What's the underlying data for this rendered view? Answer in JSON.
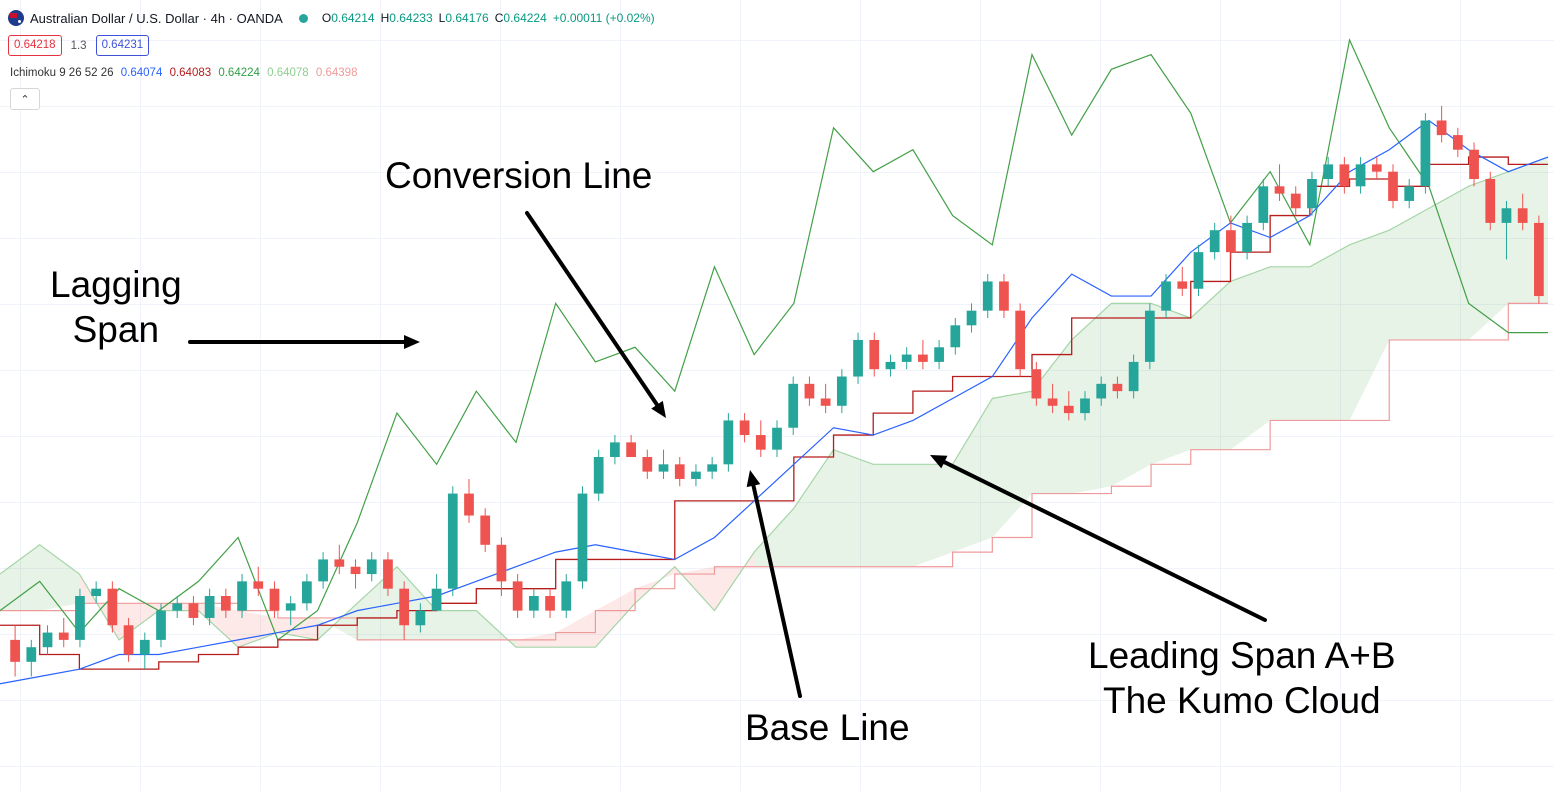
{
  "header": {
    "symbol_title": "Australian Dollar / U.S. Dollar · 4h · OANDA",
    "open_label": "O",
    "open": "0.64214",
    "high_label": "H",
    "high": "0.64233",
    "low_label": "L",
    "low": "0.64176",
    "close_label": "C",
    "close": "0.64224",
    "change": "+0.00011 (+0.02%)"
  },
  "quote": {
    "sell": "0.64218",
    "spread": "1.3",
    "buy": "0.64231"
  },
  "indicator": {
    "name": "Ichimoku 9 26 52 26",
    "values": [
      "0.64074",
      "0.64083",
      "0.64224",
      "0.64078",
      "0.64398"
    ]
  },
  "annotations": {
    "conversion_line": "Conversion Line",
    "lagging_span": "Lagging\nSpan",
    "base_line": "Base Line",
    "leading_span": "Leading Span A+B\nThe Kumo Cloud"
  },
  "colors": {
    "bull": "#26a69a",
    "bear": "#ef5350",
    "conversion": "#2962ff",
    "base": "#b71c1c",
    "lagging": "#43a047",
    "span_a": "#a5d6a7",
    "span_b": "#ef9a9a"
  },
  "chart_data": {
    "type": "candlestick",
    "instrument": "AUD/USD",
    "timeframe": "4h",
    "indicator": "Ichimoku 9 26 52 26",
    "series": [
      {
        "name": "conversion",
        "y": [
          0.641,
          0.6411,
          0.6412,
          0.6414,
          0.6414,
          0.6415,
          0.6416,
          0.6417,
          0.6418,
          0.642,
          0.6421,
          0.6422,
          0.6424,
          0.6426,
          0.6428,
          0.6429,
          0.6428,
          0.6427,
          0.643,
          0.6435,
          0.644,
          0.6445,
          0.6444,
          0.6446,
          0.6449,
          0.6452,
          0.646,
          0.6466,
          0.6463,
          0.6463,
          0.6469,
          0.6473,
          0.6471,
          0.6474,
          0.648,
          0.6483,
          0.6487,
          0.6483,
          0.648,
          0.6482
        ]
      },
      {
        "name": "base",
        "y": [
          0.6418,
          0.6414,
          0.6412,
          0.6412,
          0.6413,
          0.6414,
          0.6415,
          0.6416,
          0.6418,
          0.6419,
          0.642,
          0.6421,
          0.6423,
          0.6423,
          0.6427,
          0.6427,
          0.6427,
          0.6435,
          0.6435,
          0.6435,
          0.6441,
          0.6444,
          0.6447,
          0.645,
          0.6452,
          0.6452,
          0.6455,
          0.646,
          0.646,
          0.646,
          0.6465,
          0.6469,
          0.6474,
          0.6478,
          0.6479,
          0.6478,
          0.6481,
          0.6482,
          0.6481,
          0.6481
        ]
      },
      {
        "name": "lagging",
        "y": [
          0.642,
          0.6424,
          0.6417,
          0.6423,
          0.642,
          0.6424,
          0.643,
          0.6416,
          0.642,
          0.6432,
          0.6447,
          0.644,
          0.645,
          0.6443,
          0.6462,
          0.6454,
          0.6456,
          0.645,
          0.6467,
          0.6455,
          0.6462,
          0.6486,
          0.648,
          0.6483,
          0.6474,
          0.647,
          0.6496,
          0.6485,
          0.6494,
          0.6496,
          0.6488,
          0.6473,
          0.648,
          0.647,
          0.6498,
          0.6486,
          0.6478,
          0.6462,
          0.6458,
          0.6458
        ]
      },
      {
        "name": "span_a",
        "y": [
          0.6425,
          0.6429,
          0.6425,
          0.6416,
          0.642,
          0.642,
          0.6415,
          0.6417,
          0.6416,
          0.6421,
          0.6426,
          0.642,
          0.642,
          0.6415,
          0.6415,
          0.6415,
          0.6421,
          0.6426,
          0.642,
          0.6428,
          0.6434,
          0.6442,
          0.644,
          0.644,
          0.644,
          0.6449,
          0.645,
          0.6457,
          0.6462,
          0.6462,
          0.646,
          0.6465,
          0.6467,
          0.6467,
          0.647,
          0.6472,
          0.6475,
          0.6478,
          0.648,
          0.6482
        ]
      },
      {
        "name": "span_b",
        "y": [
          0.642,
          0.642,
          0.6421,
          0.6421,
          0.6421,
          0.6421,
          0.642,
          0.6419,
          0.6419,
          0.6416,
          0.6416,
          0.6416,
          0.6416,
          0.6416,
          0.6417,
          0.642,
          0.6423,
          0.6425,
          0.6426,
          0.6426,
          0.6426,
          0.6426,
          0.6426,
          0.6426,
          0.6428,
          0.643,
          0.6436,
          0.6436,
          0.6437,
          0.644,
          0.6442,
          0.6442,
          0.6446,
          0.6446,
          0.6446,
          0.6457,
          0.6457,
          0.6457,
          0.6462,
          0.6462
        ]
      }
    ],
    "candles": [
      [
        0.6416,
        0.6418,
        0.6411,
        0.6413
      ],
      [
        0.6413,
        0.6416,
        0.6411,
        0.6415
      ],
      [
        0.6415,
        0.6418,
        0.6414,
        0.6417
      ],
      [
        0.6417,
        0.6419,
        0.6415,
        0.6416
      ],
      [
        0.6416,
        0.6423,
        0.6415,
        0.6422
      ],
      [
        0.6422,
        0.6424,
        0.6421,
        0.6423
      ],
      [
        0.6423,
        0.6424,
        0.6417,
        0.6418
      ],
      [
        0.6418,
        0.6419,
        0.6413,
        0.6414
      ],
      [
        0.6414,
        0.6417,
        0.6412,
        0.6416
      ],
      [
        0.6416,
        0.6421,
        0.6415,
        0.642
      ],
      [
        0.642,
        0.6422,
        0.6419,
        0.6421
      ],
      [
        0.6421,
        0.6422,
        0.6418,
        0.6419
      ],
      [
        0.6419,
        0.6423,
        0.6418,
        0.6422
      ],
      [
        0.6422,
        0.6423,
        0.6419,
        0.642
      ],
      [
        0.642,
        0.6425,
        0.6419,
        0.6424
      ],
      [
        0.6424,
        0.6426,
        0.6422,
        0.6423
      ],
      [
        0.6423,
        0.6424,
        0.6419,
        0.642
      ],
      [
        0.642,
        0.6422,
        0.6418,
        0.6421
      ],
      [
        0.6421,
        0.6425,
        0.642,
        0.6424
      ],
      [
        0.6424,
        0.6428,
        0.6423,
        0.6427
      ],
      [
        0.6427,
        0.6429,
        0.6425,
        0.6426
      ],
      [
        0.6426,
        0.6427,
        0.6423,
        0.6425
      ],
      [
        0.6425,
        0.6428,
        0.6424,
        0.6427
      ],
      [
        0.6427,
        0.6428,
        0.6422,
        0.6423
      ],
      [
        0.6423,
        0.6424,
        0.6416,
        0.6418
      ],
      [
        0.6418,
        0.6421,
        0.6417,
        0.642
      ],
      [
        0.642,
        0.6425,
        0.642,
        0.6423
      ],
      [
        0.6423,
        0.6437,
        0.6422,
        0.6436
      ],
      [
        0.6436,
        0.6438,
        0.6432,
        0.6433
      ],
      [
        0.6433,
        0.6434,
        0.6428,
        0.6429
      ],
      [
        0.6429,
        0.643,
        0.6422,
        0.6424
      ],
      [
        0.6424,
        0.6425,
        0.6419,
        0.642
      ],
      [
        0.642,
        0.6423,
        0.6419,
        0.6422
      ],
      [
        0.6422,
        0.6423,
        0.6419,
        0.642
      ],
      [
        0.642,
        0.6425,
        0.6419,
        0.6424
      ],
      [
        0.6424,
        0.6437,
        0.6423,
        0.6436
      ],
      [
        0.6436,
        0.6442,
        0.6435,
        0.6441
      ],
      [
        0.6441,
        0.6444,
        0.644,
        0.6443
      ],
      [
        0.6443,
        0.6444,
        0.6441,
        0.6441
      ],
      [
        0.6441,
        0.6442,
        0.6438,
        0.6439
      ],
      [
        0.6439,
        0.6442,
        0.6438,
        0.644
      ],
      [
        0.644,
        0.6441,
        0.6437,
        0.6438
      ],
      [
        0.6438,
        0.644,
        0.6437,
        0.6439
      ],
      [
        0.6439,
        0.6441,
        0.6438,
        0.644
      ],
      [
        0.644,
        0.6447,
        0.6439,
        0.6446
      ],
      [
        0.6446,
        0.6447,
        0.6443,
        0.6444
      ],
      [
        0.6444,
        0.6446,
        0.6441,
        0.6442
      ],
      [
        0.6442,
        0.6446,
        0.6441,
        0.6445
      ],
      [
        0.6445,
        0.6452,
        0.6444,
        0.6451
      ],
      [
        0.6451,
        0.6452,
        0.6448,
        0.6449
      ],
      [
        0.6449,
        0.6451,
        0.6447,
        0.6448
      ],
      [
        0.6448,
        0.6453,
        0.6447,
        0.6452
      ],
      [
        0.6452,
        0.6458,
        0.6451,
        0.6457
      ],
      [
        0.6457,
        0.6458,
        0.6452,
        0.6453
      ],
      [
        0.6453,
        0.6455,
        0.6452,
        0.6454
      ],
      [
        0.6454,
        0.6456,
        0.6453,
        0.6455
      ],
      [
        0.6455,
        0.6457,
        0.6453,
        0.6454
      ],
      [
        0.6454,
        0.6457,
        0.6453,
        0.6456
      ],
      [
        0.6456,
        0.646,
        0.6455,
        0.6459
      ],
      [
        0.6459,
        0.6462,
        0.6458,
        0.6461
      ],
      [
        0.6461,
        0.6466,
        0.646,
        0.6465
      ],
      [
        0.6465,
        0.6466,
        0.646,
        0.6461
      ],
      [
        0.6461,
        0.6462,
        0.6452,
        0.6453
      ],
      [
        0.6453,
        0.6454,
        0.6448,
        0.6449
      ],
      [
        0.6449,
        0.6451,
        0.6447,
        0.6448
      ],
      [
        0.6448,
        0.645,
        0.6446,
        0.6447
      ],
      [
        0.6447,
        0.645,
        0.6446,
        0.6449
      ],
      [
        0.6449,
        0.6452,
        0.6448,
        0.6451
      ],
      [
        0.6451,
        0.6452,
        0.6449,
        0.645
      ],
      [
        0.645,
        0.6455,
        0.6449,
        0.6454
      ],
      [
        0.6454,
        0.6462,
        0.6453,
        0.6461
      ],
      [
        0.6461,
        0.6466,
        0.646,
        0.6465
      ],
      [
        0.6465,
        0.6467,
        0.6463,
        0.6464
      ],
      [
        0.6464,
        0.647,
        0.6463,
        0.6469
      ],
      [
        0.6469,
        0.6473,
        0.6468,
        0.6472
      ],
      [
        0.6472,
        0.6474,
        0.6468,
        0.6469
      ],
      [
        0.6469,
        0.6474,
        0.6468,
        0.6473
      ],
      [
        0.6473,
        0.6479,
        0.6472,
        0.6478
      ],
      [
        0.6478,
        0.6481,
        0.6476,
        0.6477
      ],
      [
        0.6477,
        0.6478,
        0.6474,
        0.6475
      ],
      [
        0.6475,
        0.648,
        0.6474,
        0.6479
      ],
      [
        0.6479,
        0.6482,
        0.6478,
        0.6481
      ],
      [
        0.6481,
        0.6482,
        0.6477,
        0.6478
      ],
      [
        0.6478,
        0.6482,
        0.6477,
        0.6481
      ],
      [
        0.6481,
        0.6482,
        0.6479,
        0.648
      ],
      [
        0.648,
        0.6481,
        0.6475,
        0.6476
      ],
      [
        0.6476,
        0.6479,
        0.6475,
        0.6478
      ],
      [
        0.6478,
        0.6488,
        0.6477,
        0.6487
      ],
      [
        0.6487,
        0.6489,
        0.6484,
        0.6485
      ],
      [
        0.6485,
        0.6486,
        0.6482,
        0.6483
      ],
      [
        0.6483,
        0.6484,
        0.6478,
        0.6479
      ],
      [
        0.6479,
        0.648,
        0.6472,
        0.6473
      ],
      [
        0.6473,
        0.6476,
        0.6468,
        0.6475
      ],
      [
        0.6475,
        0.6477,
        0.6472,
        0.6473
      ],
      [
        0.6473,
        0.6474,
        0.6462,
        0.6463
      ]
    ]
  }
}
